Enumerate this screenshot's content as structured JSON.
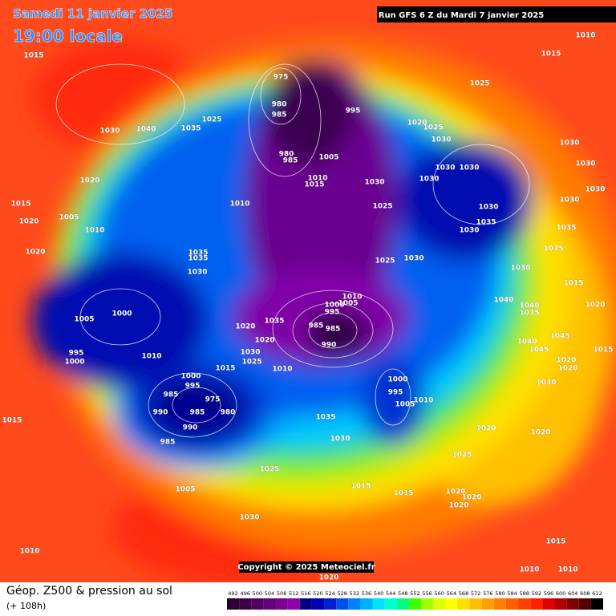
{
  "header": {
    "date": "Samedi 11 janvier 2025",
    "time": "19:00 locale",
    "run": "Run GFS 6 Z du Mardi 7 janvier 2025"
  },
  "copyright": "Copyright © 2025 Meteociel.fr",
  "footer": {
    "title": "Géop. Z500 & pression au sol",
    "lead": "(+ 108h)"
  },
  "colorbar": {
    "ticks": [
      492,
      496,
      500,
      504,
      508,
      512,
      516,
      520,
      524,
      528,
      532,
      536,
      540,
      544,
      548,
      552,
      556,
      560,
      564,
      568,
      572,
      576,
      580,
      584,
      588,
      592,
      596,
      600,
      604,
      608,
      612
    ],
    "colors": [
      "#2a0030",
      "#3d0047",
      "#51005e",
      "#660078",
      "#7a0090",
      "#8f00a8",
      "#000080",
      "#0000b0",
      "#0020d0",
      "#0050e8",
      "#0080ff",
      "#00b0ff",
      "#00e0ff",
      "#00ffd0",
      "#00ff80",
      "#40ff00",
      "#a0ff00",
      "#e0ff00",
      "#ffff00",
      "#ffe000",
      "#ffc000",
      "#ffa000",
      "#ff8000",
      "#ff6000",
      "#ff4000",
      "#ff2000",
      "#e00000",
      "#b00000",
      "#800000",
      "#500000",
      "#000000"
    ]
  },
  "pressure_labels": [
    "975",
    "980",
    "985",
    "995",
    "985",
    "980",
    "1005",
    "1010",
    "1015",
    "1030",
    "1025",
    "1010",
    "1025",
    "1035",
    "1040",
    "1030",
    "1015",
    "1015",
    "1010",
    "1025",
    "1020",
    "1025",
    "1030",
    "1030",
    "1030",
    "1030",
    "1030",
    "1030",
    "1030",
    "1030",
    "1035",
    "1030",
    "1030",
    "1035",
    "1035",
    "1030",
    "1025",
    "1030",
    "1015",
    "1040",
    "1040",
    "1035",
    "1020",
    "1045",
    "1040",
    "1045",
    "1015",
    "1020",
    "1020",
    "1030",
    "1020",
    "1020",
    "1025",
    "1010",
    "1005",
    "995",
    "1000",
    "1030",
    "1035",
    "1015",
    "1015",
    "1020",
    "1020",
    "1020",
    "1025",
    "1005",
    "1030",
    "1010",
    "1010",
    "1015",
    "1010",
    "1020",
    "1015",
    "1000",
    "995",
    "985",
    "975",
    "985",
    "980",
    "990",
    "990",
    "985",
    "1015",
    "1025",
    "1030",
    "1020",
    "1020",
    "1035",
    "1010",
    "985",
    "985",
    "990",
    "995",
    "1000",
    "1005",
    "1010",
    "1010",
    "1000",
    "1005",
    "995",
    "1000",
    "1020",
    "1020",
    "1015",
    "1005",
    "1010",
    "1020",
    "1035",
    "1030",
    "1035"
  ]
}
